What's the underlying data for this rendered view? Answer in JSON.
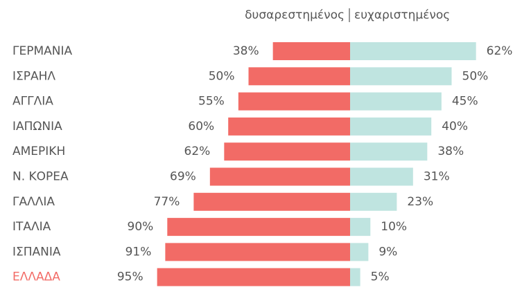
{
  "chart_data": {
    "type": "diverging-bar",
    "categories": [
      "ΓΕΡΜΑΝΙΑ",
      "ΙΣΡΑΗΛ",
      "ΑΓΓΛΙΑ",
      "ΙΑΠΩΝΙΑ",
      "ΑΜΕΡΙΚΗ",
      "Ν. ΚΟΡΕΑ",
      "ΓΑΛΛΙΑ",
      "ΙΤΑΛΙΑ",
      "ΙΣΠΑΝΙΑ",
      "ΕΛΛΑΔΑ"
    ],
    "label_colors": [
      "#555555",
      "#555555",
      "#555555",
      "#555555",
      "#555555",
      "#555555",
      "#555555",
      "#555555",
      "#555555",
      "#f26b66"
    ],
    "series": [
      {
        "name": "δυσαρεστημένος",
        "color": "#f26b66",
        "values": [
          38,
          50,
          55,
          60,
          62,
          69,
          77,
          90,
          91,
          95
        ],
        "value_labels": [
          "38%",
          "50%",
          "55%",
          "60%",
          "62%",
          "69%",
          "77%",
          "90%",
          "91%",
          "95%"
        ]
      },
      {
        "name": "ευχαριστημένος",
        "color": "#bfe4e0",
        "values": [
          62,
          50,
          45,
          40,
          38,
          31,
          23,
          10,
          9,
          5
        ],
        "value_labels": [
          "62%",
          "50%",
          "45%",
          "40%",
          "38%",
          "31%",
          "23%",
          "10%",
          "9%",
          "5%"
        ]
      }
    ]
  }
}
